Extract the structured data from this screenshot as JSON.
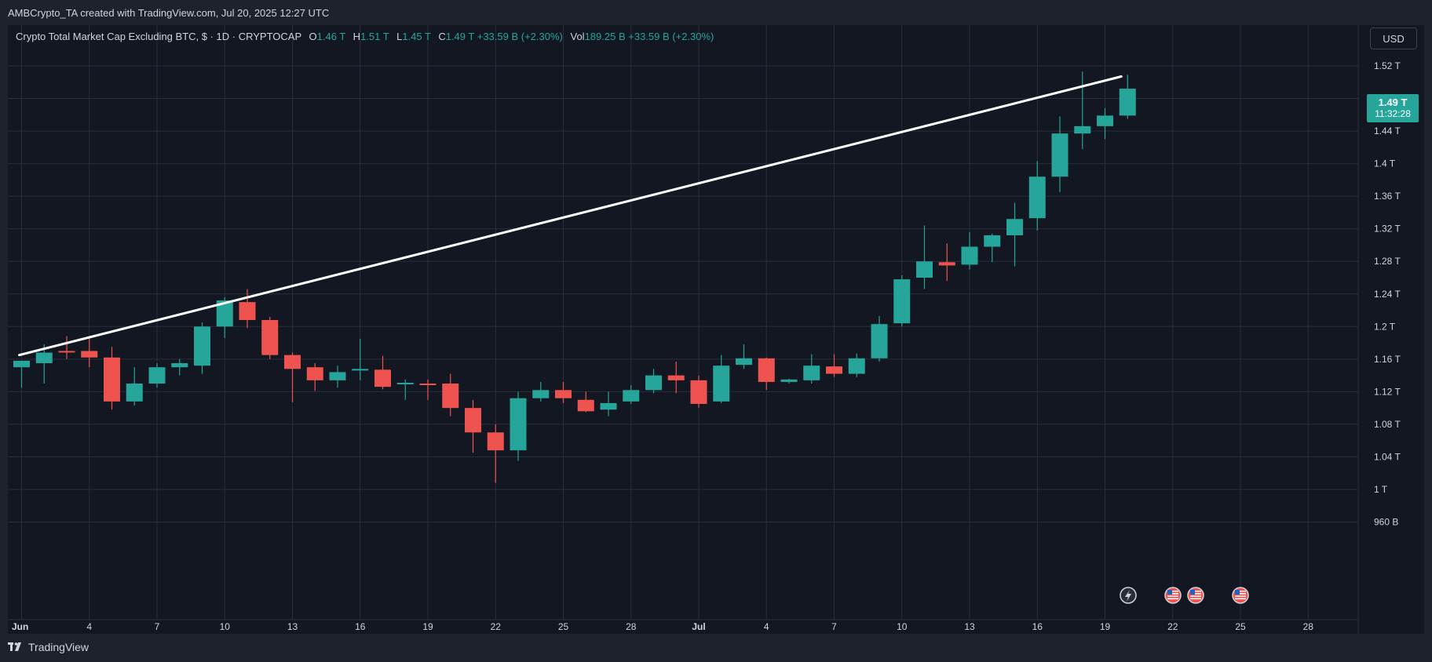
{
  "caption": "AMBCrypto_TA created with TradingView.com, Jul 20, 2025 12:27 UTC",
  "legend": {
    "title": "Crypto Total Market Cap Excluding BTC, $ · 1D · CRYPTOCAP",
    "o_label": "O",
    "o_value": "1.46 T",
    "h_label": "H",
    "h_value": "1.51 T",
    "l_label": "L",
    "l_value": "1.45 T",
    "c_label": "C",
    "c_value": "1.49 T",
    "change": "+33.59 B (+2.30%)",
    "vol_label": "Vol",
    "vol_value": "189.25 B",
    "vol_change": "+33.59 B (+2.30%)"
  },
  "currency_button": "USD",
  "last_price": {
    "price": "1.49 T",
    "countdown": "11:32:28"
  },
  "brand": "TradingView",
  "colors": {
    "up": "#26a69a",
    "down": "#ef5350",
    "background": "#131722",
    "grid": "#2a2e39",
    "trendline": "#ffffff"
  },
  "event_icons": [
    "lightning-icon",
    "us-flag-icon",
    "us-flag-icon",
    "us-flag-icon"
  ],
  "chart_data": {
    "type": "candlestick",
    "y_unit": "T",
    "ylim": [
      0.96,
      1.54
    ],
    "y_ticks": [
      "1.52 T",
      "1.48 T",
      "1.44 T",
      "1.4 T",
      "1.36 T",
      "1.32 T",
      "1.28 T",
      "1.24 T",
      "1.2 T",
      "1.16 T",
      "1.12 T",
      "1.08 T",
      "1.04 T",
      "1 T",
      "960 B"
    ],
    "x_ticks": [
      "Jun",
      "4",
      "7",
      "10",
      "13",
      "16",
      "19",
      "22",
      "25",
      "28",
      "Jul",
      "4",
      "7",
      "10",
      "13",
      "16",
      "19",
      "22",
      "25",
      "28"
    ],
    "candles": [
      {
        "date": "2025-06-01",
        "o": 1.15,
        "h": 1.155,
        "l": 1.125,
        "c": 1.158
      },
      {
        "date": "2025-06-02",
        "o": 1.155,
        "h": 1.178,
        "l": 1.13,
        "c": 1.168
      },
      {
        "date": "2025-06-03",
        "o": 1.17,
        "h": 1.188,
        "l": 1.16,
        "c": 1.169
      },
      {
        "date": "2025-06-04",
        "o": 1.17,
        "h": 1.186,
        "l": 1.15,
        "c": 1.162
      },
      {
        "date": "2025-06-05",
        "o": 1.162,
        "h": 1.175,
        "l": 1.098,
        "c": 1.108
      },
      {
        "date": "2025-06-06",
        "o": 1.108,
        "h": 1.15,
        "l": 1.103,
        "c": 1.13
      },
      {
        "date": "2025-06-07",
        "o": 1.13,
        "h": 1.155,
        "l": 1.125,
        "c": 1.15
      },
      {
        "date": "2025-06-08",
        "o": 1.15,
        "h": 1.16,
        "l": 1.14,
        "c": 1.155
      },
      {
        "date": "2025-06-09",
        "o": 1.152,
        "h": 1.205,
        "l": 1.142,
        "c": 1.2
      },
      {
        "date": "2025-06-10",
        "o": 1.2,
        "h": 1.236,
        "l": 1.186,
        "c": 1.232
      },
      {
        "date": "2025-06-11",
        "o": 1.23,
        "h": 1.246,
        "l": 1.198,
        "c": 1.208
      },
      {
        "date": "2025-06-12",
        "o": 1.208,
        "h": 1.212,
        "l": 1.16,
        "c": 1.165
      },
      {
        "date": "2025-06-13",
        "o": 1.165,
        "h": 1.168,
        "l": 1.107,
        "c": 1.148
      },
      {
        "date": "2025-06-14",
        "o": 1.15,
        "h": 1.155,
        "l": 1.121,
        "c": 1.134
      },
      {
        "date": "2025-06-15",
        "o": 1.134,
        "h": 1.152,
        "l": 1.125,
        "c": 1.144
      },
      {
        "date": "2025-06-16",
        "o": 1.146,
        "h": 1.185,
        "l": 1.134,
        "c": 1.148
      },
      {
        "date": "2025-06-17",
        "o": 1.147,
        "h": 1.164,
        "l": 1.123,
        "c": 1.126
      },
      {
        "date": "2025-06-18",
        "o": 1.129,
        "h": 1.135,
        "l": 1.11,
        "c": 1.131
      },
      {
        "date": "2025-06-19",
        "o": 1.13,
        "h": 1.135,
        "l": 1.11,
        "c": 1.129
      },
      {
        "date": "2025-06-20",
        "o": 1.13,
        "h": 1.142,
        "l": 1.09,
        "c": 1.1
      },
      {
        "date": "2025-06-21",
        "o": 1.1,
        "h": 1.11,
        "l": 1.045,
        "c": 1.07
      },
      {
        "date": "2025-06-22",
        "o": 1.07,
        "h": 1.08,
        "l": 1.008,
        "c": 1.048
      },
      {
        "date": "2025-06-23",
        "o": 1.048,
        "h": 1.12,
        "l": 1.035,
        "c": 1.112
      },
      {
        "date": "2025-06-24",
        "o": 1.112,
        "h": 1.132,
        "l": 1.108,
        "c": 1.122
      },
      {
        "date": "2025-06-25",
        "o": 1.122,
        "h": 1.132,
        "l": 1.106,
        "c": 1.112
      },
      {
        "date": "2025-06-26",
        "o": 1.11,
        "h": 1.12,
        "l": 1.095,
        "c": 1.096
      },
      {
        "date": "2025-06-27",
        "o": 1.098,
        "h": 1.12,
        "l": 1.09,
        "c": 1.106
      },
      {
        "date": "2025-06-28",
        "o": 1.108,
        "h": 1.128,
        "l": 1.105,
        "c": 1.122
      },
      {
        "date": "2025-06-29",
        "o": 1.122,
        "h": 1.148,
        "l": 1.118,
        "c": 1.14
      },
      {
        "date": "2025-06-30",
        "o": 1.14,
        "h": 1.157,
        "l": 1.118,
        "c": 1.134
      },
      {
        "date": "2025-07-01",
        "o": 1.134,
        "h": 1.14,
        "l": 1.1,
        "c": 1.105
      },
      {
        "date": "2025-07-02",
        "o": 1.108,
        "h": 1.165,
        "l": 1.106,
        "c": 1.152
      },
      {
        "date": "2025-07-03",
        "o": 1.153,
        "h": 1.178,
        "l": 1.148,
        "c": 1.161
      },
      {
        "date": "2025-07-04",
        "o": 1.161,
        "h": 1.162,
        "l": 1.122,
        "c": 1.132
      },
      {
        "date": "2025-07-05",
        "o": 1.132,
        "h": 1.136,
        "l": 1.13,
        "c": 1.135
      },
      {
        "date": "2025-07-06",
        "o": 1.134,
        "h": 1.166,
        "l": 1.13,
        "c": 1.152
      },
      {
        "date": "2025-07-07",
        "o": 1.151,
        "h": 1.166,
        "l": 1.138,
        "c": 1.142
      },
      {
        "date": "2025-07-08",
        "o": 1.142,
        "h": 1.167,
        "l": 1.138,
        "c": 1.161
      },
      {
        "date": "2025-07-09",
        "o": 1.161,
        "h": 1.213,
        "l": 1.157,
        "c": 1.203
      },
      {
        "date": "2025-07-10",
        "o": 1.204,
        "h": 1.263,
        "l": 1.2,
        "c": 1.258
      },
      {
        "date": "2025-07-11",
        "o": 1.26,
        "h": 1.324,
        "l": 1.246,
        "c": 1.28
      },
      {
        "date": "2025-07-12",
        "o": 1.279,
        "h": 1.302,
        "l": 1.256,
        "c": 1.275
      },
      {
        "date": "2025-07-13",
        "o": 1.276,
        "h": 1.316,
        "l": 1.27,
        "c": 1.298
      },
      {
        "date": "2025-07-14",
        "o": 1.298,
        "h": 1.314,
        "l": 1.279,
        "c": 1.312
      },
      {
        "date": "2025-07-15",
        "o": 1.312,
        "h": 1.352,
        "l": 1.274,
        "c": 1.332
      },
      {
        "date": "2025-07-16",
        "o": 1.333,
        "h": 1.403,
        "l": 1.318,
        "c": 1.384
      },
      {
        "date": "2025-07-17",
        "o": 1.384,
        "h": 1.458,
        "l": 1.365,
        "c": 1.437
      },
      {
        "date": "2025-07-18",
        "o": 1.437,
        "h": 1.513,
        "l": 1.418,
        "c": 1.446
      },
      {
        "date": "2025-07-19",
        "o": 1.446,
        "h": 1.468,
        "l": 1.43,
        "c": 1.459
      },
      {
        "date": "2025-07-20",
        "o": 1.459,
        "h": 1.509,
        "l": 1.455,
        "c": 1.492
      }
    ],
    "trendline": {
      "from": {
        "date": "2025-06-01",
        "value": 1.165
      },
      "to": {
        "date": "2025-07-20",
        "value": 1.507
      }
    }
  }
}
